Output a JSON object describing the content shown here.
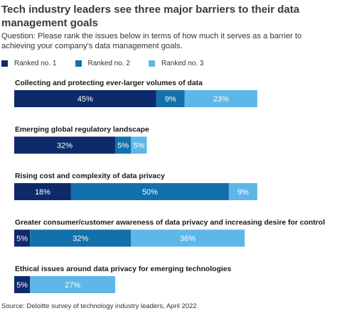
{
  "title": "Tech industry leaders see three major barriers to their data management goals",
  "subtitle": "Question: Please rank the issues below in terms of how much it serves as a barrier to achieving your company's data management goals.",
  "source": "Source: Deloitte survey of technology industry leaders, April 2022.",
  "colors": {
    "ranked_1": "#0d2a6b",
    "ranked_2": "#1270ab",
    "ranked_3": "#5db7e8",
    "bar_label": "#ffffff"
  },
  "chart_data": {
    "type": "bar",
    "orientation": "horizontal",
    "stacked": true,
    "unit": "%",
    "legend_position": "top-left",
    "grid": false,
    "categories": [
      "Collecting and protecting ever-larger volumes of data",
      "Emerging global regulatory landscape",
      "Rising cost and complexity of data privacy",
      "Greater consumer/customer awareness of data privacy and increasing desire for control",
      "Ethical issues around data privacy for emerging technologies"
    ],
    "series": [
      {
        "name": "Ranked no. 1",
        "color": "#0d2a6b",
        "values": [
          45,
          32,
          18,
          5,
          5
        ]
      },
      {
        "name": "Ranked no. 2",
        "color": "#1270ab",
        "values": [
          9,
          5,
          50,
          32,
          0
        ]
      },
      {
        "name": "Ranked no. 3",
        "color": "#5db7e8",
        "values": [
          23,
          5,
          9,
          36,
          27
        ]
      }
    ]
  }
}
